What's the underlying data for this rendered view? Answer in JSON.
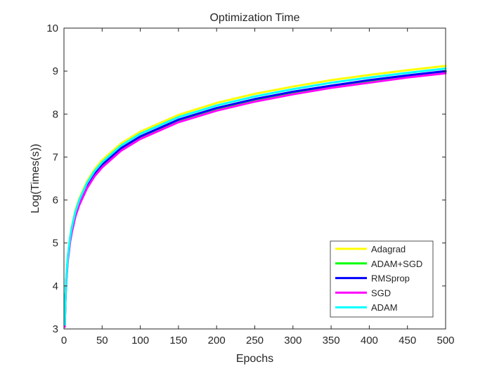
{
  "chart_data": {
    "type": "line",
    "title": "Optimization Time",
    "xlabel": "Epochs",
    "ylabel": "Log(Times(s))",
    "xlim": [
      0,
      500
    ],
    "ylim": [
      3,
      10
    ],
    "xticks": [
      0,
      50,
      100,
      150,
      200,
      250,
      300,
      350,
      400,
      450,
      500
    ],
    "yticks": [
      3,
      4,
      5,
      6,
      7,
      8,
      9,
      10
    ],
    "grid": false,
    "legend_position": "bottom-right",
    "x": [
      1,
      2,
      3,
      5,
      8,
      10,
      15,
      20,
      30,
      40,
      50,
      75,
      100,
      150,
      200,
      250,
      300,
      350,
      400,
      450,
      500
    ],
    "series": [
      {
        "name": "Adagrad",
        "color": "#ffff00",
        "values": [
          3.1,
          3.78,
          4.18,
          4.68,
          5.14,
          5.36,
          5.76,
          6.03,
          6.43,
          6.71,
          6.93,
          7.32,
          7.59,
          7.98,
          8.26,
          8.47,
          8.64,
          8.79,
          8.91,
          9.02,
          9.12
        ]
      },
      {
        "name": "ADAM+SGD",
        "color": "#00ff00",
        "values": [
          3.08,
          3.74,
          4.13,
          4.62,
          5.07,
          5.28,
          5.67,
          5.93,
          6.32,
          6.6,
          6.81,
          7.2,
          7.46,
          7.85,
          8.12,
          8.33,
          8.5,
          8.64,
          8.77,
          8.88,
          8.98
        ]
      },
      {
        "name": "RMSprop",
        "color": "#0000ff",
        "values": [
          3.08,
          3.75,
          4.14,
          4.63,
          5.08,
          5.29,
          5.68,
          5.94,
          6.33,
          6.61,
          6.83,
          7.21,
          7.48,
          7.87,
          8.14,
          8.35,
          8.52,
          8.66,
          8.79,
          8.9,
          9.0
        ]
      },
      {
        "name": "SGD",
        "color": "#ff00ff",
        "values": [
          3.05,
          3.7,
          4.09,
          4.58,
          5.02,
          5.23,
          5.62,
          5.88,
          6.27,
          6.55,
          6.76,
          7.15,
          7.42,
          7.81,
          8.08,
          8.29,
          8.46,
          8.61,
          8.73,
          8.85,
          8.95
        ]
      },
      {
        "name": "ADAM",
        "color": "#00ffff",
        "values": [
          3.1,
          3.77,
          4.17,
          4.67,
          5.12,
          5.34,
          5.73,
          6.0,
          6.39,
          6.67,
          6.88,
          7.27,
          7.54,
          7.93,
          8.2,
          8.41,
          8.58,
          8.73,
          8.85,
          8.96,
          9.06
        ]
      }
    ]
  }
}
